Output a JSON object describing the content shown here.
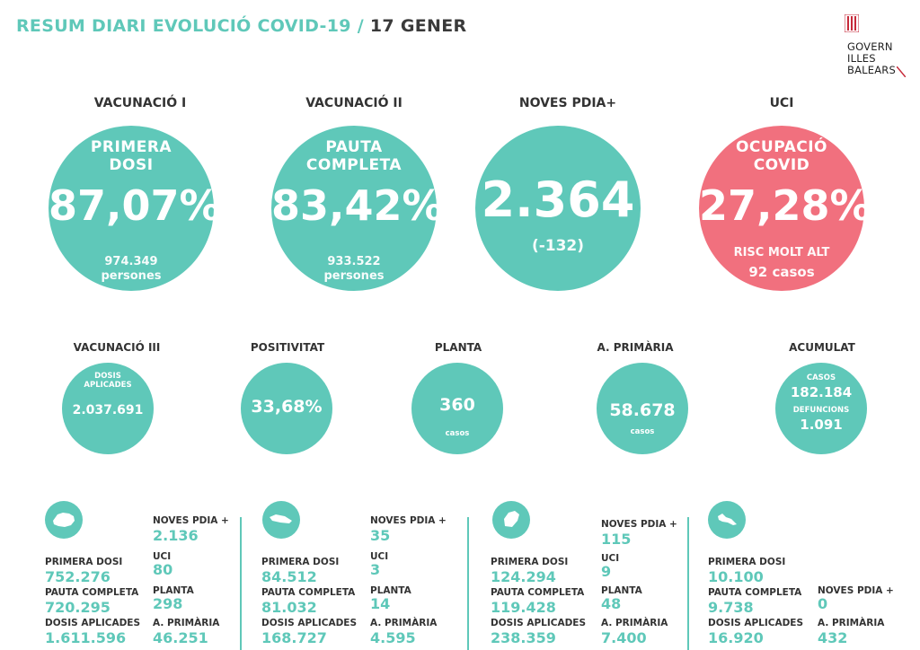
{
  "header": {
    "title": "RESUM DIARI EVOLUCIÓ COVID-19",
    "separator": "/",
    "date": "17 GENER"
  },
  "logo": {
    "line1": "GOVERN",
    "line2": "ILLES",
    "line3": "BALEARS"
  },
  "colors": {
    "teal": "#5fc8b9",
    "red": "#f1707e"
  },
  "big": [
    {
      "label": "VACUNACIÓ I",
      "top1": "PRIMERA",
      "top2": "DOSI",
      "value": "87,07%",
      "sub1": "974.349",
      "sub2": "persones"
    },
    {
      "label": "VACUNACIÓ II",
      "top1": "PAUTA",
      "top2": "COMPLETA",
      "value": "83,42%",
      "sub1": "933.522",
      "sub2": "persones"
    },
    {
      "label": "NOVES PDIA+",
      "value": "2.364",
      "sub1": "(-132)"
    },
    {
      "label": "UCI",
      "top1": "OCUPACIÓ",
      "top2": "COVID",
      "value": "27,28%",
      "sub1": "RISC MOLT ALT",
      "sub2": "92 casos"
    }
  ],
  "small": [
    {
      "label": "VACUNACIÓ III",
      "t1": "DOSIS",
      "t2": "APLICADES",
      "value": "2.037.691"
    },
    {
      "label": "POSITIVITAT",
      "value": "33,68%"
    },
    {
      "label": "PLANTA",
      "value": "360",
      "t1": "casos"
    },
    {
      "label": "A. PRIMÀRIA",
      "value": "58.678",
      "t1": "casos"
    },
    {
      "label": "ACUMULAT",
      "t1": "CASOS",
      "v1": "182.184",
      "t2": "DEFUNCIONS",
      "v2": "1.091"
    }
  ],
  "islands": [
    {
      "icon": "mallorca-icon",
      "primera_lbl": "PRIMERA DOSI",
      "primera": "752.276",
      "pauta_lbl": "PAUTA COMPLETA",
      "pauta": "720.295",
      "dosis_lbl": "DOSIS APLICADES",
      "dosis": "1.611.596",
      "pdia_lbl": "NOVES PDIA +",
      "pdia": "2.136",
      "uci_lbl": "UCI",
      "uci": "80",
      "planta_lbl": "PLANTA",
      "planta": "298",
      "prim_lbl": "A. PRIMÀRIA",
      "prim": "46.251"
    },
    {
      "icon": "menorca-icon",
      "primera_lbl": "PRIMERA DOSI",
      "primera": "84.512",
      "pauta_lbl": "PAUTA COMPLETA",
      "pauta": "81.032",
      "dosis_lbl": "DOSIS APLICADES",
      "dosis": "168.727",
      "pdia_lbl": "NOVES PDIA +",
      "pdia": "35",
      "uci_lbl": "UCI",
      "uci": "3",
      "planta_lbl": "PLANTA",
      "planta": "14",
      "prim_lbl": "A. PRIMÀRIA",
      "prim": "4.595"
    },
    {
      "icon": "eivissa-icon",
      "primera_lbl": "PRIMERA DOSI",
      "primera": "124.294",
      "pauta_lbl": "PAUTA COMPLETA",
      "pauta": "119.428",
      "dosis_lbl": "DOSIS APLICADES",
      "dosis": "238.359",
      "pdia_lbl": "NOVES PDIA +",
      "pdia": "115",
      "uci_lbl": "UCI",
      "uci": "9",
      "planta_lbl": "PLANTA",
      "planta": "48",
      "prim_lbl": "A. PRIMÀRIA",
      "prim": "7.400"
    },
    {
      "icon": "formentera-icon",
      "primera_lbl": "PRIMERA DOSI",
      "primera": "10.100",
      "pauta_lbl": "PAUTA COMPLETA",
      "pauta": "9.738",
      "dosis_lbl": "DOSIS APLICADES",
      "dosis": "16.920",
      "pdia_lbl": "NOVES PDIA +",
      "pdia": "0",
      "prim_lbl": "A. PRIMÀRIA",
      "prim": "432"
    }
  ]
}
